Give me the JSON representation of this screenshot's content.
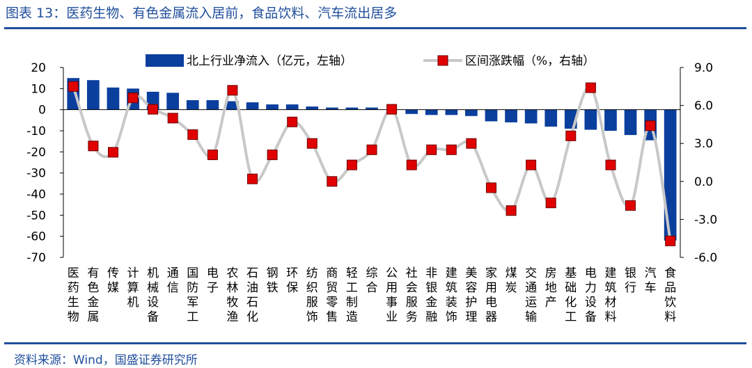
{
  "header": {
    "title": "图表 13：医药生物、有色金属流入居前，食品饮料、汽车流出居多"
  },
  "footer": {
    "source": "资料来源：Wind，国盛证券研究所"
  },
  "colors": {
    "bar": "#0b3f9e",
    "line": "#c8c8c8",
    "marker": "#e00000",
    "marker_edge": "#6b0000",
    "accent": "#1f4e9b"
  },
  "chart_data": {
    "type": "bar+line",
    "categories": [
      "医药生物",
      "有色金属",
      "传媒",
      "计算机",
      "机械设备",
      "通信",
      "国防军工",
      "电子",
      "农林牧渔",
      "石油石化",
      "钢铁",
      "环保",
      "纺织服饰",
      "商贸零售",
      "轻工制造",
      "综合",
      "公用事业",
      "社会服务",
      "非银金融",
      "建筑装饰",
      "美容护理",
      "家用电器",
      "煤炭",
      "交通运输",
      "房地产",
      "基础化工",
      "电力设备",
      "建筑材料",
      "银行",
      "汽车",
      "食品饮料"
    ],
    "series": [
      {
        "name": "北上行业净流入（亿元，左轴）",
        "axis": "left",
        "type": "bar",
        "values": [
          15,
          14,
          10.5,
          10,
          8.5,
          8,
          4.5,
          4.5,
          4,
          3.5,
          2.5,
          2.5,
          1.5,
          1,
          1,
          1,
          0,
          -2,
          -2.5,
          -2.5,
          -3,
          -5.5,
          -6,
          -6.5,
          -8,
          -9,
          -9.5,
          -10,
          -12,
          -14.5,
          -62
        ]
      },
      {
        "name": "区间涨跌幅（%，右轴）",
        "axis": "right",
        "type": "line",
        "values": [
          7.5,
          2.8,
          2.3,
          6.6,
          5.7,
          5.0,
          3.7,
          2.1,
          7.2,
          0.2,
          2.1,
          4.7,
          3.0,
          0.0,
          1.3,
          2.5,
          5.7,
          1.3,
          2.5,
          2.5,
          3.0,
          -0.5,
          -2.3,
          1.3,
          -1.7,
          3.6,
          7.4,
          1.3,
          -1.9,
          4.4,
          -4.7
        ]
      }
    ],
    "left_axis": {
      "range": [
        -70,
        20
      ],
      "ticks": [
        20,
        10,
        0,
        -10,
        -20,
        -30,
        -40,
        -50,
        -60,
        -70
      ]
    },
    "right_axis": {
      "range": [
        -6,
        9
      ],
      "ticks": [
        "9.0",
        "6.0",
        "3.0",
        "0.0",
        "-3.0",
        "-6.0"
      ]
    },
    "legend_position": "top"
  }
}
